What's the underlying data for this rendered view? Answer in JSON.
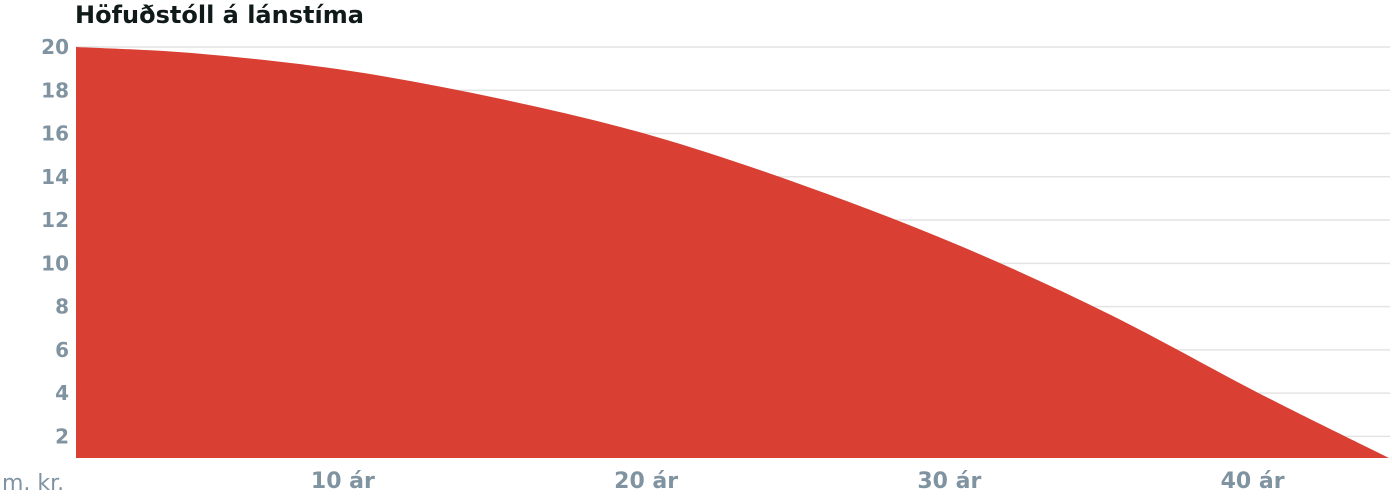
{
  "chart_data": {
    "type": "area",
    "title": "Höfuðstóll á lánstíma",
    "y_unit_label": "m. kr.",
    "x_tick_labels": [
      "10 ár",
      "20 ár",
      "30 ár",
      "40 ár"
    ],
    "x_tick_values": [
      10,
      20,
      30,
      40
    ],
    "y_ticks": [
      2,
      4,
      6,
      8,
      10,
      12,
      14,
      16,
      18,
      20
    ],
    "ylim": [
      1,
      20
    ],
    "xlim": [
      1,
      44.3
    ],
    "grid": true,
    "color": "#d93f33",
    "series": [
      {
        "x": [
          1,
          5,
          10,
          15,
          20,
          25,
          30,
          35,
          40,
          44.3
        ],
        "values": [
          20,
          19.7,
          18.9,
          17.6,
          15.9,
          13.6,
          10.9,
          7.7,
          4.0,
          1.0
        ]
      }
    ]
  }
}
